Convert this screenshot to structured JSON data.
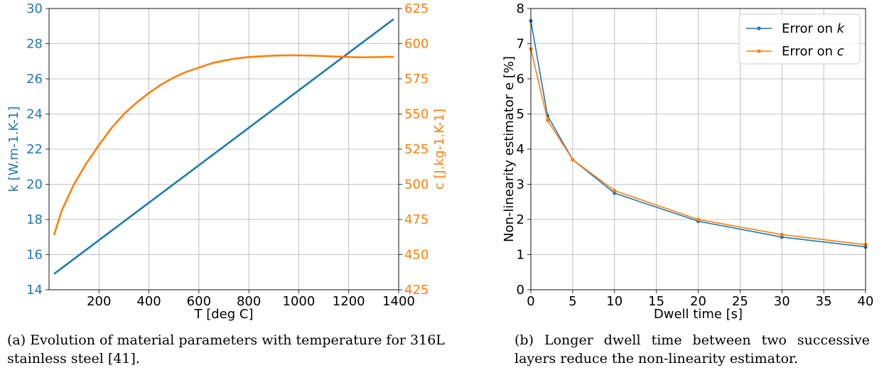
{
  "chart_data": [
    {
      "type": "line",
      "xlabel": "T [deg C]",
      "xlim": [
        0,
        1400
      ],
      "xticks": [
        200,
        400,
        600,
        800,
        1000,
        1200,
        1400
      ],
      "x_tick_labels": [
        "200",
        "400",
        "600",
        "800",
        "1000",
        "1200",
        "1400"
      ],
      "ylabel": "k [W.m-1.K-1]",
      "ylim": [
        14,
        30
      ],
      "yticks": [
        14,
        16,
        18,
        20,
        22,
        24,
        26,
        28,
        30
      ],
      "y_tick_labels": [
        "14",
        "16",
        "18",
        "20",
        "22",
        "24",
        "26",
        "28",
        "30"
      ],
      "y2label": "c [J.kg-1.K-1]",
      "y2lim": [
        425,
        625
      ],
      "y2ticks": [
        425,
        450,
        475,
        500,
        525,
        550,
        575,
        600,
        625
      ],
      "y2_tick_labels": [
        "425",
        "450",
        "475",
        "500",
        "525",
        "550",
        "575",
        "600",
        "625"
      ],
      "grid": true,
      "series": [
        {
          "axis": "left",
          "color": "#1f77b4",
          "x": [
            20,
            1380
          ],
          "y": [
            14.9,
            29.4
          ]
        },
        {
          "axis": "right",
          "color": "#ff7f0e",
          "x": [
            20,
            50,
            100,
            150,
            200,
            250,
            300,
            350,
            400,
            450,
            500,
            550,
            600,
            650,
            700,
            750,
            800,
            850,
            900,
            950,
            1000,
            1050,
            1100,
            1150,
            1200,
            1250,
            1300,
            1350,
            1380
          ],
          "y": [
            464,
            481,
            500,
            515,
            528,
            540,
            550,
            558,
            565,
            571,
            576,
            580,
            583,
            586,
            588,
            589.5,
            590.5,
            591,
            591.5,
            591.7,
            591.7,
            591.5,
            591.2,
            590.8,
            590.5,
            590.3,
            590.4,
            590.6,
            590.7
          ]
        }
      ]
    },
    {
      "type": "line",
      "xlabel": "Dwell time [s]",
      "xlim": [
        0,
        40
      ],
      "xticks": [
        0,
        5,
        10,
        15,
        20,
        25,
        30,
        35,
        40
      ],
      "x_tick_labels": [
        "0",
        "5",
        "10",
        "15",
        "20",
        "25",
        "30",
        "35",
        "40"
      ],
      "ylabel": "Non-linearity estimator e [%]",
      "ylim": [
        0,
        8
      ],
      "yticks": [
        0,
        1,
        2,
        3,
        4,
        5,
        6,
        7,
        8
      ],
      "y_tick_labels": [
        "0",
        "1",
        "2",
        "3",
        "4",
        "5",
        "6",
        "7",
        "8"
      ],
      "grid": true,
      "legend": "top-right",
      "series": [
        {
          "legend_prefix": "Error on ",
          "legend_symbol": "k",
          "color": "#1f77b4",
          "x": [
            0,
            2,
            5,
            10,
            20,
            30,
            40
          ],
          "y": [
            7.65,
            4.95,
            3.7,
            2.75,
            1.95,
            1.5,
            1.22
          ]
        },
        {
          "legend_prefix": "Error on ",
          "legend_symbol": "c",
          "color": "#ff7f0e",
          "x": [
            0,
            2,
            5,
            10,
            20,
            30,
            40
          ],
          "y": [
            6.85,
            4.82,
            3.7,
            2.82,
            2.0,
            1.57,
            1.28
          ]
        }
      ]
    }
  ],
  "captions": {
    "a": "(a) Evolution of material parameters with temperature for 316L stainless steel [41].",
    "b": "(b) Longer dwell time between two successive layers reduce the non-linearity estimator."
  }
}
